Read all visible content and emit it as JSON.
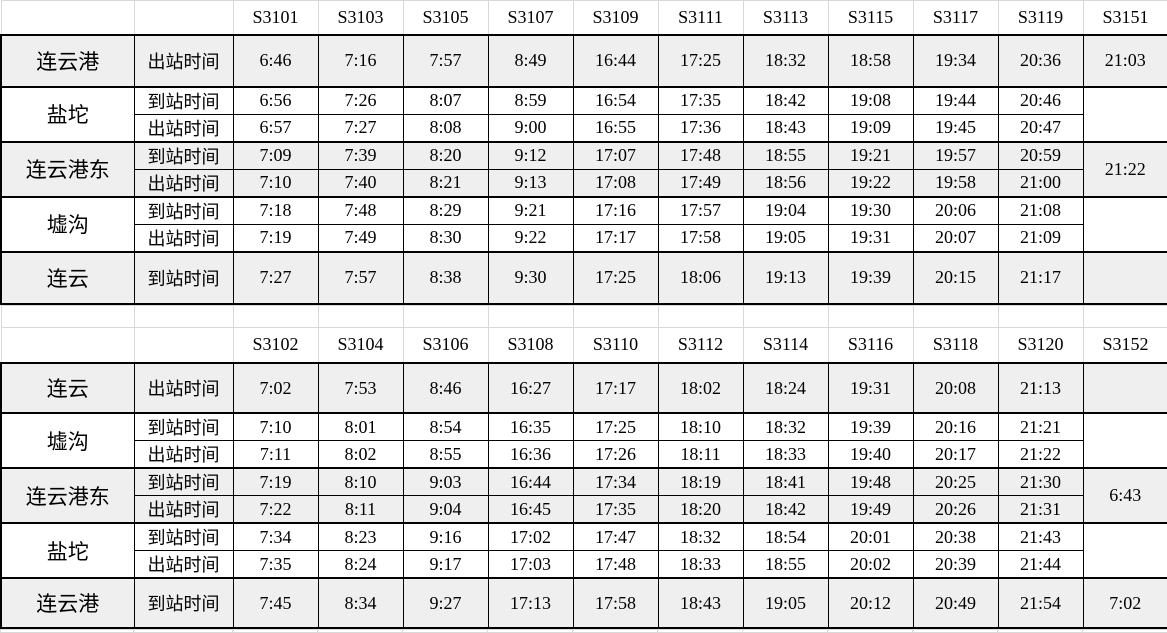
{
  "colors": {
    "shaded_row": "#efefef",
    "grid_line": "#d9d9d9",
    "body_border": "#000000",
    "text": "#000000"
  },
  "tables": [
    {
      "name": "timetable-down",
      "trains": [
        "S3101",
        "S3103",
        "S3105",
        "S3107",
        "S3109",
        "S3111",
        "S3113",
        "S3115",
        "S3117",
        "S3119",
        "S3151"
      ],
      "gap_row": false,
      "groups": [
        {
          "station": "连云港",
          "shaded": true,
          "rows": [
            {
              "label": "出站时间",
              "times": [
                "6:46",
                "7:16",
                "7:57",
                "8:49",
                "16:44",
                "17:25",
                "18:32",
                "18:58",
                "19:34",
                "20:36"
              ]
            }
          ],
          "last_cell": "21:03"
        },
        {
          "station": "盐坨",
          "shaded": false,
          "rows": [
            {
              "label": "到站时间",
              "times": [
                "6:56",
                "7:26",
                "8:07",
                "8:59",
                "16:54",
                "17:35",
                "18:42",
                "19:08",
                "19:44",
                "20:46"
              ]
            },
            {
              "label": "出站时间",
              "times": [
                "6:57",
                "7:27",
                "8:08",
                "9:00",
                "16:55",
                "17:36",
                "18:43",
                "19:09",
                "19:45",
                "20:47"
              ]
            }
          ],
          "last_cell": ""
        },
        {
          "station": "连云港东",
          "shaded": true,
          "rows": [
            {
              "label": "到站时间",
              "times": [
                "7:09",
                "7:39",
                "8:20",
                "9:12",
                "17:07",
                "17:48",
                "18:55",
                "19:21",
                "19:57",
                "20:59"
              ]
            },
            {
              "label": "出站时间",
              "times": [
                "7:10",
                "7:40",
                "8:21",
                "9:13",
                "17:08",
                "17:49",
                "18:56",
                "19:22",
                "19:58",
                "21:00"
              ]
            }
          ],
          "last_cell": "21:22"
        },
        {
          "station": "墟沟",
          "shaded": false,
          "rows": [
            {
              "label": "到站时间",
              "times": [
                "7:18",
                "7:48",
                "8:29",
                "9:21",
                "17:16",
                "17:57",
                "19:04",
                "19:30",
                "20:06",
                "21:08"
              ]
            },
            {
              "label": "出站时间",
              "times": [
                "7:19",
                "7:49",
                "8:30",
                "9:22",
                "17:17",
                "17:58",
                "19:05",
                "19:31",
                "20:07",
                "21:09"
              ]
            }
          ],
          "last_cell": ""
        },
        {
          "station": "连云",
          "shaded": true,
          "rows": [
            {
              "label": "到站时间",
              "times": [
                "7:27",
                "7:57",
                "8:38",
                "9:30",
                "17:25",
                "18:06",
                "19:13",
                "19:39",
                "20:15",
                "21:17"
              ]
            }
          ],
          "last_cell": ""
        }
      ]
    },
    {
      "name": "timetable-up",
      "trains": [
        "S3102",
        "S3104",
        "S3106",
        "S3108",
        "S3110",
        "S3112",
        "S3114",
        "S3116",
        "S3118",
        "S3120",
        "S3152"
      ],
      "gap_row": true,
      "groups": [
        {
          "station": "连云",
          "shaded": true,
          "rows": [
            {
              "label": "出站时间",
              "times": [
                "7:02",
                "7:53",
                "8:46",
                "16:27",
                "17:17",
                "18:02",
                "18:24",
                "19:31",
                "20:08",
                "21:13"
              ]
            }
          ],
          "last_cell": ""
        },
        {
          "station": "墟沟",
          "shaded": false,
          "rows": [
            {
              "label": "到站时间",
              "times": [
                "7:10",
                "8:01",
                "8:54",
                "16:35",
                "17:25",
                "18:10",
                "18:32",
                "19:39",
                "20:16",
                "21:21"
              ]
            },
            {
              "label": "出站时间",
              "times": [
                "7:11",
                "8:02",
                "8:55",
                "16:36",
                "17:26",
                "18:11",
                "18:33",
                "19:40",
                "20:17",
                "21:22"
              ]
            }
          ],
          "last_cell": ""
        },
        {
          "station": "连云港东",
          "shaded": true,
          "rows": [
            {
              "label": "到站时间",
              "times": [
                "7:19",
                "8:10",
                "9:03",
                "16:44",
                "17:34",
                "18:19",
                "18:41",
                "19:48",
                "20:25",
                "21:30"
              ]
            },
            {
              "label": "出站时间",
              "times": [
                "7:22",
                "8:11",
                "9:04",
                "16:45",
                "17:35",
                "18:20",
                "18:42",
                "19:49",
                "20:26",
                "21:31"
              ]
            }
          ],
          "last_cell": "6:43"
        },
        {
          "station": "盐坨",
          "shaded": false,
          "rows": [
            {
              "label": "到站时间",
              "times": [
                "7:34",
                "8:23",
                "9:16",
                "17:02",
                "17:47",
                "18:32",
                "18:54",
                "20:01",
                "20:38",
                "21:43"
              ]
            },
            {
              "label": "出站时间",
              "times": [
                "7:35",
                "8:24",
                "9:17",
                "17:03",
                "17:48",
                "18:33",
                "18:55",
                "20:02",
                "20:39",
                "21:44"
              ]
            }
          ],
          "last_cell": ""
        },
        {
          "station": "连云港",
          "shaded": true,
          "rows": [
            {
              "label": "到站时间",
              "times": [
                "7:45",
                "8:34",
                "9:27",
                "17:13",
                "17:58",
                "18:43",
                "19:05",
                "20:12",
                "20:49",
                "21:54"
              ]
            }
          ],
          "last_cell": "7:02"
        }
      ]
    }
  ]
}
